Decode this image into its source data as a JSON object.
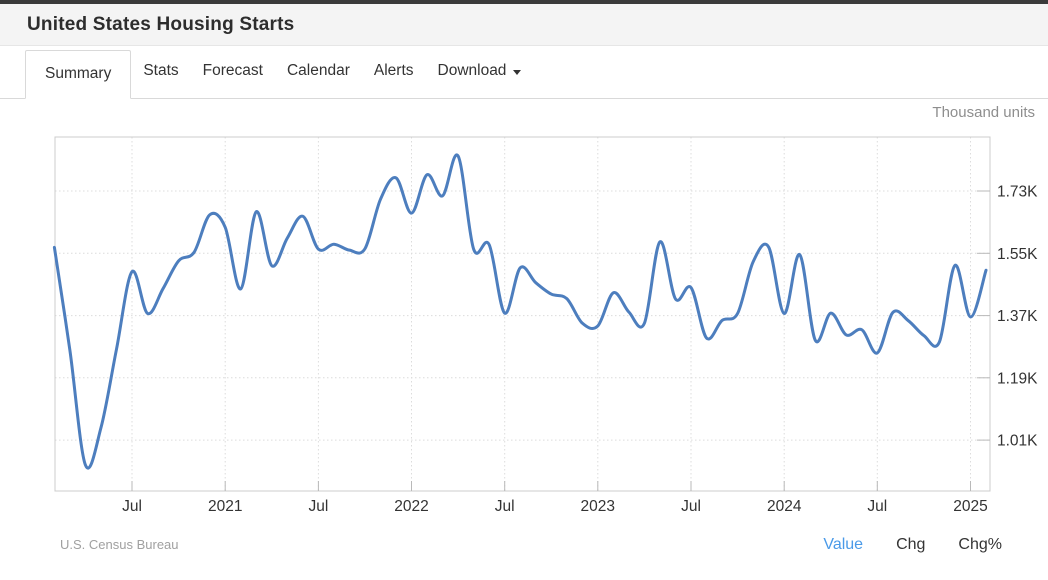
{
  "page": {
    "title": "United States Housing Starts"
  },
  "tabs": [
    {
      "label": "Summary",
      "active": true,
      "caret": false
    },
    {
      "label": "Stats",
      "active": false,
      "caret": false
    },
    {
      "label": "Forecast",
      "active": false,
      "caret": false
    },
    {
      "label": "Calendar",
      "active": false,
      "caret": false
    },
    {
      "label": "Alerts",
      "active": false,
      "caret": false
    },
    {
      "label": "Download",
      "active": false,
      "caret": true
    }
  ],
  "chart": {
    "units_label": "Thousand units",
    "source": "U.S. Census Bureau",
    "footer_links": [
      {
        "label": "Value",
        "active": true
      },
      {
        "label": "Chg",
        "active": false
      },
      {
        "label": "Chg%",
        "active": false
      }
    ],
    "colors": {
      "line": "#4d7ebe",
      "grid": "#dcdcdc",
      "border": "#cccccc",
      "tick": "#b9b9b9",
      "axis_text": "#333333",
      "active_link_blue": "#4a9ae8"
    }
  },
  "chart_data": {
    "type": "line",
    "title": "United States Housing Starts",
    "ylabel": "Thousand units",
    "x": [
      "2020-02",
      "2020-03",
      "2020-04",
      "2020-05",
      "2020-06",
      "2020-07",
      "2020-08",
      "2020-09",
      "2020-10",
      "2020-11",
      "2020-12",
      "2021-01",
      "2021-02",
      "2021-03",
      "2021-04",
      "2021-05",
      "2021-06",
      "2021-07",
      "2021-08",
      "2021-09",
      "2021-10",
      "2021-11",
      "2021-12",
      "2022-01",
      "2022-02",
      "2022-03",
      "2022-04",
      "2022-05",
      "2022-06",
      "2022-07",
      "2022-08",
      "2022-09",
      "2022-10",
      "2022-11",
      "2022-12",
      "2023-01",
      "2023-02",
      "2023-03",
      "2023-04",
      "2023-05",
      "2023-06",
      "2023-07",
      "2023-08",
      "2023-09",
      "2023-10",
      "2023-11",
      "2023-12",
      "2024-01",
      "2024-02",
      "2024-03",
      "2024-04",
      "2024-05",
      "2024-06",
      "2024-07",
      "2024-08",
      "2024-09",
      "2024-10",
      "2024-11",
      "2024-12",
      "2025-01",
      "2025-02"
    ],
    "values": [
      1567,
      1269,
      938,
      1046,
      1273,
      1497,
      1376,
      1448,
      1528,
      1553,
      1661,
      1625,
      1447,
      1670,
      1514,
      1594,
      1657,
      1562,
      1576,
      1559,
      1563,
      1706,
      1768,
      1666,
      1777,
      1716,
      1831,
      1562,
      1575,
      1377,
      1508,
      1465,
      1432,
      1419,
      1348,
      1340,
      1436,
      1380,
      1348,
      1583,
      1418,
      1451,
      1305,
      1356,
      1376,
      1525,
      1568,
      1376,
      1546,
      1299,
      1377,
      1314,
      1329,
      1262,
      1379,
      1355,
      1312,
      1294,
      1515,
      1366,
      1501
    ],
    "y_ticks": [
      {
        "value": 1730,
        "label": "1.73K"
      },
      {
        "value": 1550,
        "label": "1.55K"
      },
      {
        "value": 1370,
        "label": "1.37K"
      },
      {
        "value": 1190,
        "label": "1.19K"
      },
      {
        "value": 1010,
        "label": "1.01K"
      }
    ],
    "x_ticks": [
      {
        "index": 5,
        "label": "Jul"
      },
      {
        "index": 11,
        "label": "2021"
      },
      {
        "index": 17,
        "label": "Jul"
      },
      {
        "index": 23,
        "label": "2022"
      },
      {
        "index": 29,
        "label": "Jul"
      },
      {
        "index": 35,
        "label": "2023"
      },
      {
        "index": 41,
        "label": "Jul"
      },
      {
        "index": 47,
        "label": "2024"
      },
      {
        "index": 53,
        "label": "Jul"
      },
      {
        "index": 59,
        "label": "2025"
      }
    ],
    "ylim": [
      863,
      1886
    ],
    "grid": true,
    "legend": false
  }
}
